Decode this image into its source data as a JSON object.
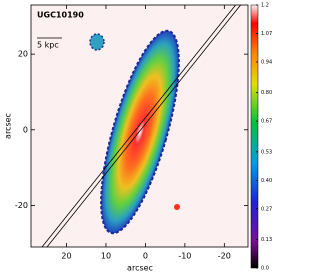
{
  "chart_data": {
    "type": "image",
    "title": "UGC10190",
    "scale_label": "5 kpc",
    "x_label": "arcsec",
    "y_label": "arcsec",
    "xlim": [
      29,
      -26
    ],
    "xticks": [
      20,
      10,
      0,
      -10,
      -20
    ],
    "ylim": [
      -31,
      33
    ],
    "yticks": [
      -20,
      0,
      20
    ],
    "colorbar": {
      "lim": [
        0,
        1.2
      ],
      "ticks": [
        {
          "value": 0,
          "label": "0.0"
        },
        0.13,
        0.27,
        {
          "value": 0.4,
          "label": "0.40"
        },
        0.53,
        0.67,
        {
          "value": 0.8,
          "label": "0.80"
        },
        0.94,
        1.07,
        1.2
      ]
    }
  }
}
